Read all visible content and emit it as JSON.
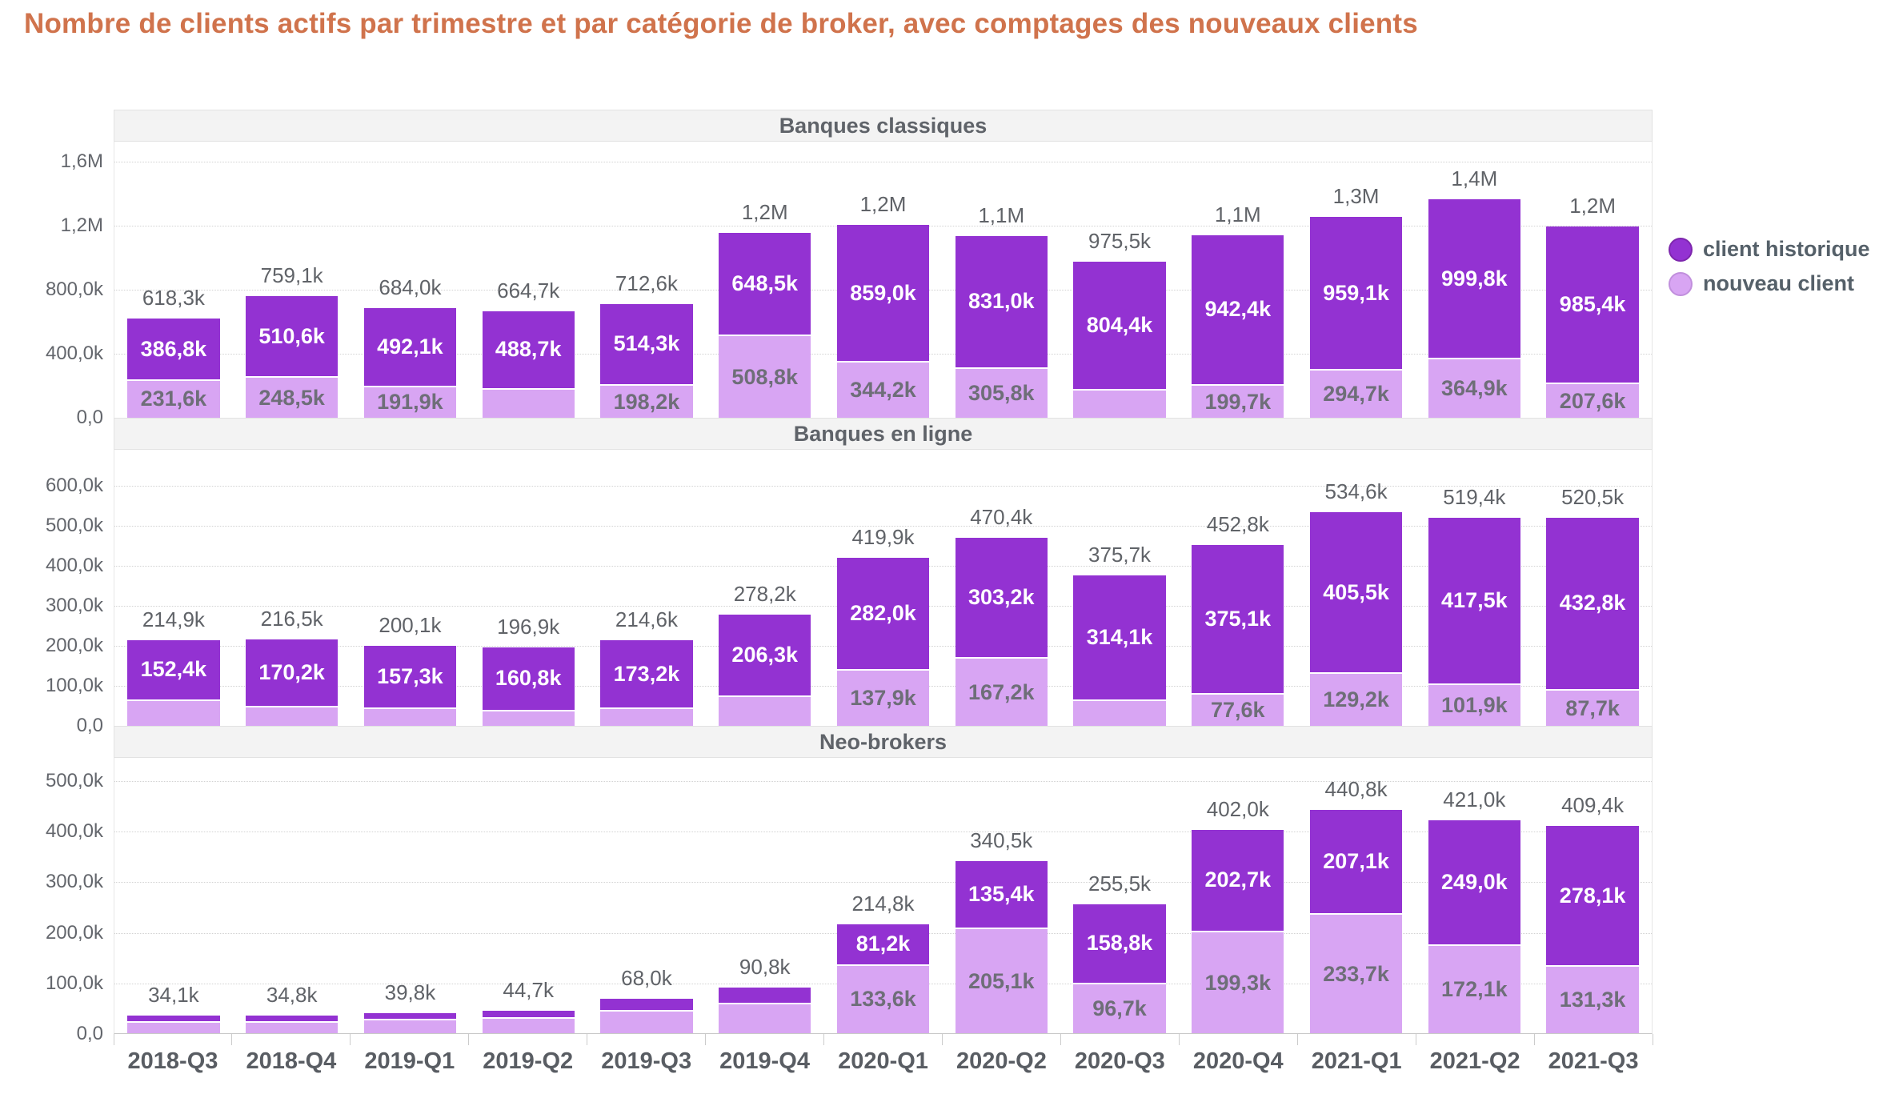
{
  "title": "Nombre de clients actifs par trimestre et par catégorie de broker, avec comptages des nouveaux clients",
  "colors": {
    "title": "#d0734c",
    "historique": "#9332d2",
    "nouveau": "#d8a5f3"
  },
  "legend": {
    "items": [
      {
        "label": "client historique",
        "color": "#9332d2",
        "ring": "#7d26ad"
      },
      {
        "label": "nouveau client",
        "color": "#d8a5f3",
        "ring": "#c18fdd"
      }
    ]
  },
  "categories": [
    "2018-Q3",
    "2018-Q4",
    "2019-Q1",
    "2019-Q2",
    "2019-Q3",
    "2019-Q4",
    "2020-Q1",
    "2020-Q2",
    "2020-Q3",
    "2020-Q4",
    "2021-Q1",
    "2021-Q2",
    "2021-Q3"
  ],
  "chart_data": [
    {
      "type": "bar",
      "subtype": "stacked",
      "panel_title": "Banques classiques",
      "unit": "thousands of clients",
      "ymax": 1600,
      "yticks": {
        "values": [
          0,
          400,
          800,
          1200,
          1600
        ],
        "labels": [
          "0,0",
          "400,0k",
          "800,0k",
          "1,2M",
          "1,6M"
        ]
      },
      "series": [
        {
          "name": "nouveau client",
          "values": [
            231.6,
            248.5,
            191.9,
            176.0,
            198.2,
            508.8,
            344.2,
            305.8,
            171.1,
            199.7,
            294.7,
            364.9,
            207.6
          ],
          "labels": [
            "231,6k",
            "248,5k",
            "191,9k",
            "",
            "198,2k",
            "508,8k",
            "344,2k",
            "305,8k",
            "",
            "199,7k",
            "294,7k",
            "364,9k",
            "207,6k"
          ]
        },
        {
          "name": "client historique",
          "values": [
            386.8,
            510.6,
            492.1,
            488.7,
            514.3,
            648.5,
            859.0,
            831.0,
            804.4,
            942.4,
            959.1,
            999.8,
            985.4
          ],
          "labels": [
            "386,8k",
            "510,6k",
            "492,1k",
            "488,7k",
            "514,3k",
            "648,5k",
            "859,0k",
            "831,0k",
            "804,4k",
            "942,4k",
            "959,1k",
            "999,8k",
            "985,4k"
          ]
        }
      ],
      "totals": [
        "618,3k",
        "759,1k",
        "684,0k",
        "664,7k",
        "712,6k",
        "1,2M",
        "1,2M",
        "1,1M",
        "975,5k",
        "1,1M",
        "1,3M",
        "1,4M",
        "1,2M"
      ]
    },
    {
      "type": "bar",
      "subtype": "stacked",
      "panel_title": "Banques en ligne",
      "unit": "thousands of clients",
      "ymax": 600,
      "yticks": {
        "values": [
          0,
          100,
          200,
          300,
          400,
          500,
          600
        ],
        "labels": [
          "0,0",
          "100,0k",
          "200,0k",
          "300,0k",
          "400,0k",
          "500,0k",
          "600,0k"
        ]
      },
      "series": [
        {
          "name": "nouveau client",
          "values": [
            62.5,
            46.3,
            42.8,
            36.1,
            41.4,
            71.9,
            137.9,
            167.2,
            61.6,
            77.6,
            129.2,
            101.9,
            87.7
          ],
          "labels": [
            "",
            "",
            "",
            "",
            "",
            "",
            "137,9k",
            "167,2k",
            "",
            "77,6k",
            "129,2k",
            "101,9k",
            "87,7k"
          ]
        },
        {
          "name": "client historique",
          "values": [
            152.4,
            170.2,
            157.3,
            160.8,
            173.2,
            206.3,
            282.0,
            303.2,
            314.1,
            375.1,
            405.5,
            417.5,
            432.8
          ],
          "labels": [
            "152,4k",
            "170,2k",
            "157,3k",
            "160,8k",
            "173,2k",
            "206,3k",
            "282,0k",
            "303,2k",
            "314,1k",
            "375,1k",
            "405,5k",
            "417,5k",
            "432,8k"
          ]
        }
      ],
      "totals": [
        "214,9k",
        "216,5k",
        "200,1k",
        "196,9k",
        "214,6k",
        "278,2k",
        "419,9k",
        "470,4k",
        "375,7k",
        "452,8k",
        "534,6k",
        "519,4k",
        "520,5k"
      ]
    },
    {
      "type": "bar",
      "subtype": "stacked",
      "panel_title": "Neo-brokers",
      "unit": "thousands of clients",
      "ymax": 500,
      "yticks": {
        "values": [
          0,
          100,
          200,
          300,
          400,
          500
        ],
        "labels": [
          "0,0",
          "100,0k",
          "200,0k",
          "300,0k",
          "400,0k",
          "500,0k"
        ]
      },
      "series": [
        {
          "name": "nouveau client",
          "values": [
            21.1,
            20.8,
            24.8,
            28.7,
            43.0,
            56.8,
            133.6,
            205.1,
            96.7,
            199.3,
            233.7,
            172.1,
            131.3
          ],
          "labels": [
            "",
            "",
            "",
            "",
            "",
            "",
            "133,6k",
            "205,1k",
            "96,7k",
            "199,3k",
            "233,7k",
            "172,1k",
            "131,3k"
          ]
        },
        {
          "name": "client historique",
          "values": [
            13.0,
            14.0,
            15.0,
            16.0,
            25.0,
            34.0,
            81.2,
            135.4,
            158.8,
            202.7,
            207.1,
            249.0,
            278.1
          ],
          "labels": [
            "",
            "",
            "",
            "",
            "",
            "",
            "81,2k",
            "135,4k",
            "158,8k",
            "202,7k",
            "207,1k",
            "249,0k",
            "278,1k"
          ]
        }
      ],
      "totals": [
        "34,1k",
        "34,8k",
        "39,8k",
        "44,7k",
        "68,0k",
        "90,8k",
        "214,8k",
        "340,5k",
        "255,5k",
        "402,0k",
        "440,8k",
        "421,0k",
        "409,4k"
      ]
    }
  ]
}
